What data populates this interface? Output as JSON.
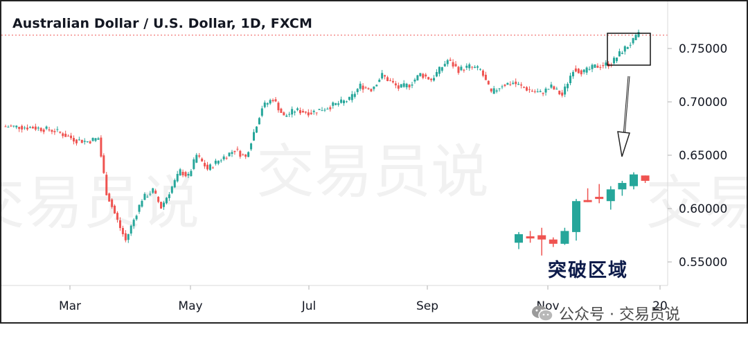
{
  "chart_data": {
    "type": "candlestick",
    "title": "Australian Dollar / U.S. Dollar, 1D, FXCM",
    "y_ticks": [
      "0.75000",
      "0.70000",
      "0.65000",
      "0.60000",
      "0.55000"
    ],
    "y_tick_values": [
      0.75,
      0.7,
      0.65,
      0.6,
      0.55
    ],
    "x_ticks": [
      "Mar",
      "May",
      "Jul",
      "Sep",
      "Nov",
      "20"
    ],
    "ylim": [
      0.535,
      0.775
    ],
    "grid": false,
    "price_line": 0.7625,
    "up_color": "#26a69a",
    "down_color": "#ef5350",
    "annotation_label": "突破区域",
    "zoom_candles": [
      {
        "o": 0.568,
        "h": 0.578,
        "l": 0.562,
        "c": 0.576
      },
      {
        "o": 0.574,
        "h": 0.579,
        "l": 0.568,
        "c": 0.572
      },
      {
        "o": 0.575,
        "h": 0.582,
        "l": 0.556,
        "c": 0.571
      },
      {
        "o": 0.571,
        "h": 0.573,
        "l": 0.564,
        "c": 0.567
      },
      {
        "o": 0.567,
        "h": 0.582,
        "l": 0.566,
        "c": 0.579
      },
      {
        "o": 0.578,
        "h": 0.609,
        "l": 0.57,
        "c": 0.607
      },
      {
        "o": 0.608,
        "h": 0.619,
        "l": 0.606,
        "c": 0.607
      },
      {
        "o": 0.611,
        "h": 0.623,
        "l": 0.605,
        "c": 0.609
      },
      {
        "o": 0.607,
        "h": 0.621,
        "l": 0.599,
        "c": 0.618
      },
      {
        "o": 0.618,
        "h": 0.626,
        "l": 0.612,
        "c": 0.624
      },
      {
        "o": 0.621,
        "h": 0.634,
        "l": 0.618,
        "c": 0.632
      },
      {
        "o": 0.631,
        "h": 0.631,
        "l": 0.624,
        "c": 0.626
      }
    ]
  },
  "watermark": {
    "text": "交易员说",
    "footer_source": "公众号 · 交易员说"
  }
}
